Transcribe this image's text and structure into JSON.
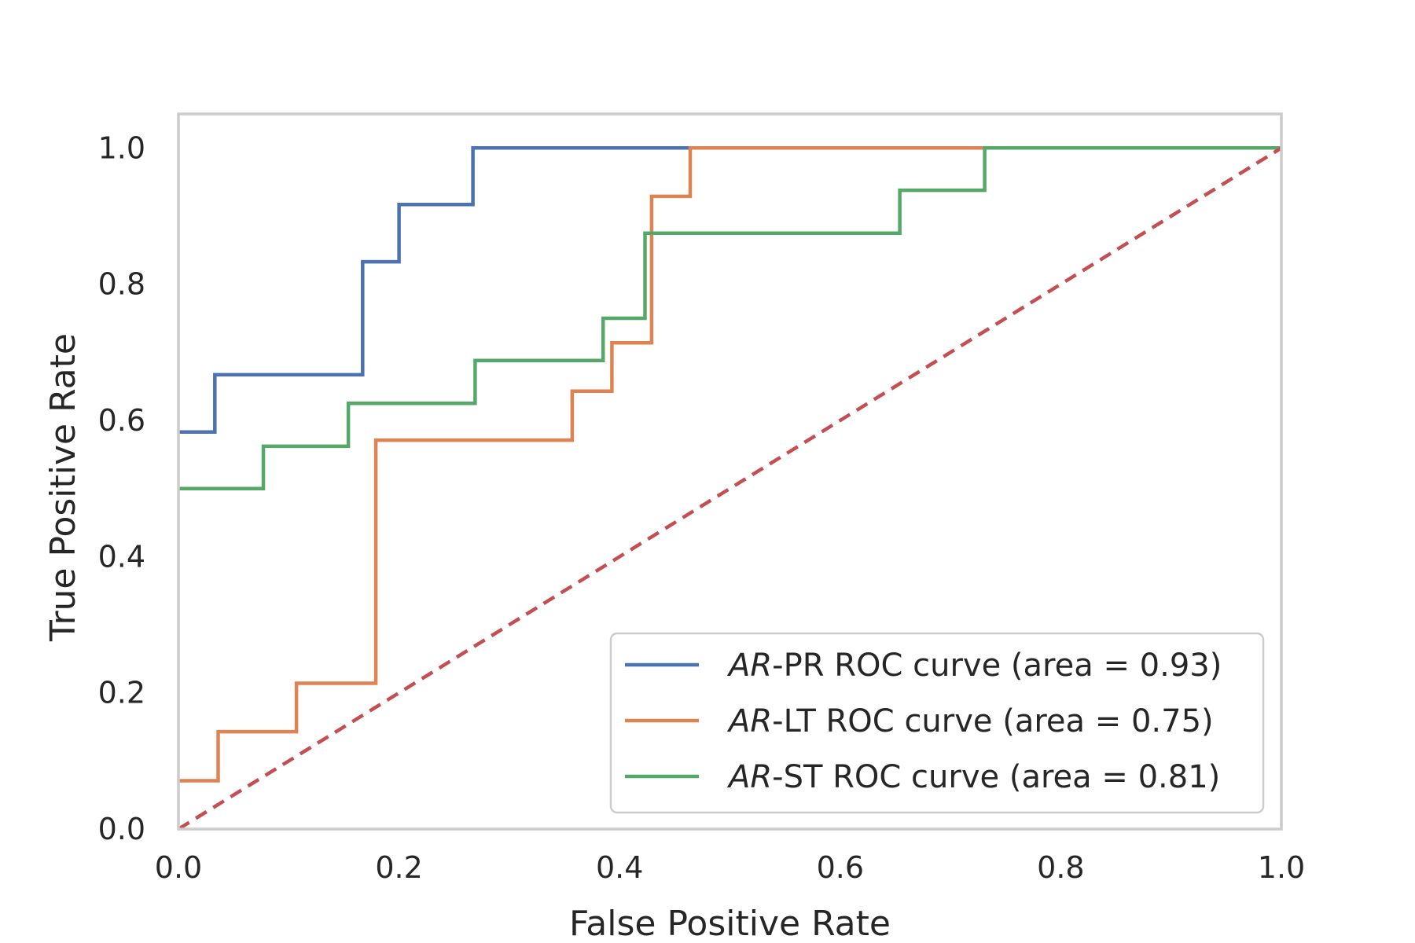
{
  "chart_data": {
    "type": "line",
    "title": "",
    "xlabel": "False Positive Rate",
    "ylabel": "True Positive Rate",
    "xlim": [
      0.0,
      1.0
    ],
    "ylim": [
      0.0,
      1.05
    ],
    "xticks": [
      "0.0",
      "0.2",
      "0.4",
      "0.6",
      "0.8",
      "1.0"
    ],
    "yticks": [
      "0.0",
      "0.2",
      "0.4",
      "0.6",
      "0.8",
      "1.0"
    ],
    "grid": false,
    "legend_position": "lower-right",
    "series": [
      {
        "name_prefix": "AR",
        "name_rest": "-PR ROC curve (area = 0.93)",
        "color": "#4c72b0",
        "style": "solid",
        "x": [
          0.0,
          0.033,
          0.033,
          0.167,
          0.167,
          0.2,
          0.2,
          0.267,
          0.267,
          0.467,
          1.0
        ],
        "y": [
          0.583,
          0.583,
          0.667,
          0.667,
          0.833,
          0.833,
          0.917,
          0.917,
          1.0,
          1.0,
          1.0
        ]
      },
      {
        "name_prefix": "AR",
        "name_rest": "-LT ROC curve (area = 0.75)",
        "color": "#dd8452",
        "style": "solid",
        "x": [
          0.0,
          0.036,
          0.036,
          0.107,
          0.107,
          0.179,
          0.179,
          0.357,
          0.357,
          0.393,
          0.393,
          0.429,
          0.429,
          0.464,
          0.464,
          0.732,
          1.0
        ],
        "y": [
          0.071,
          0.071,
          0.143,
          0.143,
          0.214,
          0.214,
          0.571,
          0.571,
          0.643,
          0.643,
          0.714,
          0.714,
          0.929,
          0.929,
          1.0,
          1.0,
          1.0
        ]
      },
      {
        "name_prefix": "AR",
        "name_rest": "-ST ROC curve (area = 0.81)",
        "color": "#55a868",
        "style": "solid",
        "x": [
          0.0,
          0.077,
          0.077,
          0.154,
          0.154,
          0.269,
          0.269,
          0.385,
          0.385,
          0.423,
          0.423,
          0.654,
          0.654,
          0.731,
          0.731,
          1.0
        ],
        "y": [
          0.5,
          0.5,
          0.562,
          0.562,
          0.625,
          0.625,
          0.688,
          0.688,
          0.75,
          0.75,
          0.875,
          0.875,
          0.938,
          0.938,
          1.0,
          1.0
        ]
      }
    ],
    "reference_line": {
      "color": "#c44e52",
      "style": "dashed",
      "x": [
        0.0,
        1.0
      ],
      "y": [
        0.0,
        1.0
      ]
    },
    "frame_color": "#cccccc"
  }
}
